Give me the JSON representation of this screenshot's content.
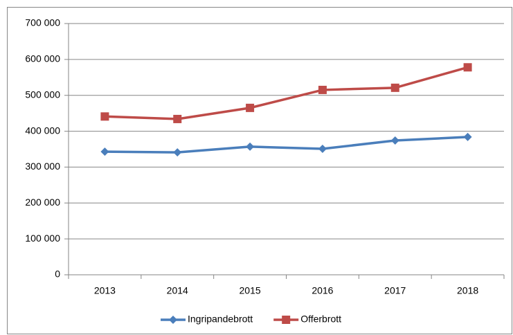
{
  "chart_data": {
    "type": "line",
    "categories": [
      "2013",
      "2014",
      "2015",
      "2016",
      "2017",
      "2018"
    ],
    "series": [
      {
        "name": "Ingripandebrott",
        "color": "#4a7ebb",
        "marker": "diamond",
        "values": [
          343000,
          341000,
          357000,
          351000,
          374000,
          384000
        ]
      },
      {
        "name": "Offerbrott",
        "color": "#be4b48",
        "marker": "square",
        "values": [
          441000,
          434000,
          465000,
          515000,
          521000,
          578000
        ]
      }
    ],
    "ylim": [
      0,
      700000
    ],
    "yticks": [
      0,
      {
        "value": 100000,
        "label": "100 000"
      },
      {
        "value": 200000,
        "label": "200 000"
      },
      {
        "value": 300000,
        "label": "300 000"
      },
      {
        "value": 400000,
        "label": "400 000"
      },
      {
        "value": 500000,
        "label": "500 000"
      },
      {
        "value": 600000,
        "label": "600 000"
      },
      {
        "value": 700000,
        "label": "700 000"
      }
    ],
    "grid": true,
    "legend": "bottom"
  }
}
